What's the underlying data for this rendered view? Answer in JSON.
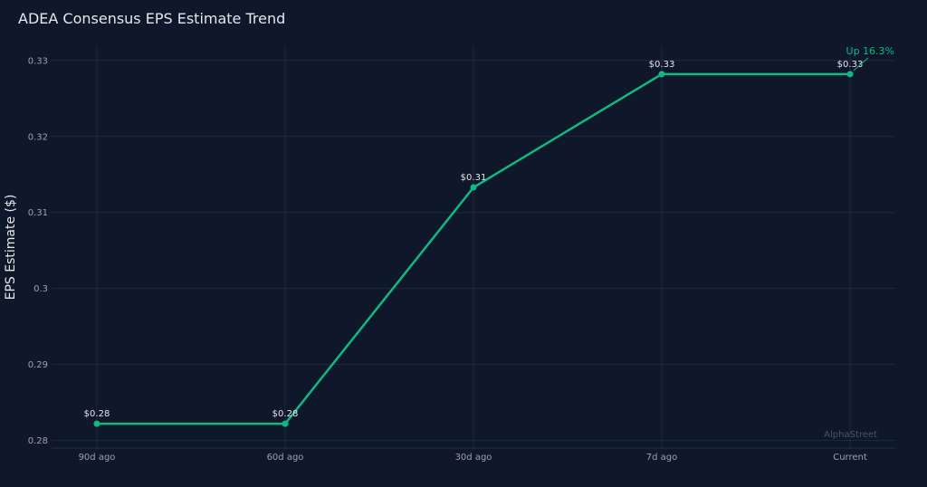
{
  "chart_data": {
    "type": "line",
    "title": "ADEA Consensus EPS Estimate Trend",
    "xlabel": "",
    "ylabel": "EPS Estimate ($)",
    "categories": [
      "90d ago",
      "60d ago",
      "30d ago",
      "7d ago",
      "Current"
    ],
    "series": [
      {
        "values": [
          0.2822,
          0.2822,
          0.3133,
          0.3282,
          0.3282
        ],
        "data_labels": [
          "$0.28",
          "$0.28",
          "$0.31",
          "$0.33",
          "$0.33"
        ]
      }
    ],
    "ylim": [
      0.279,
      0.332
    ],
    "yticks": [
      0.28,
      0.29,
      0.3,
      0.31,
      0.32,
      0.33
    ],
    "ytick_labels": [
      "0.28",
      "0.29",
      "0.3",
      "0.31",
      "0.32",
      "0.33"
    ],
    "grid": true,
    "annotation": {
      "text": "Up 16.3%",
      "category": "Current"
    },
    "watermark": "AlphaStreet",
    "colors": {
      "background": "#0f172a",
      "line": "#10b981",
      "grid": "#1f2a3c"
    }
  }
}
